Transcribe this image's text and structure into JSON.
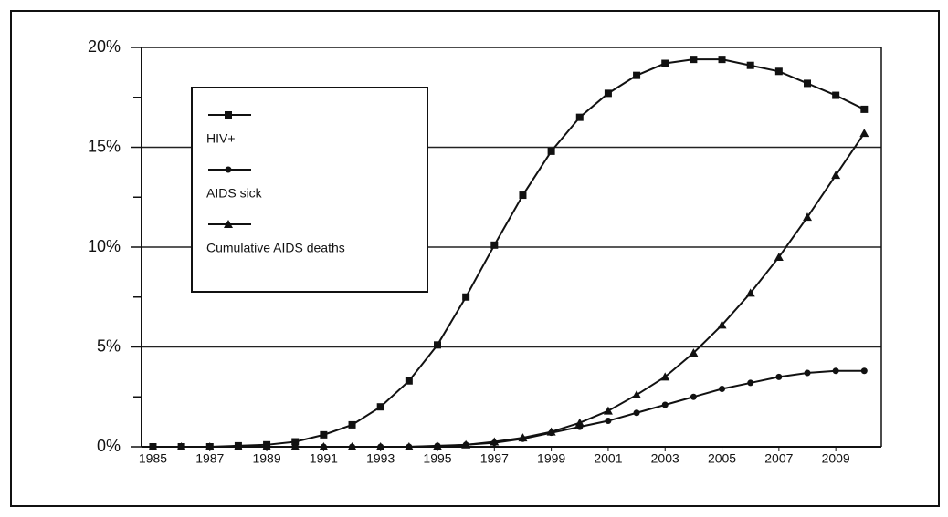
{
  "chart_data": {
    "type": "line",
    "x": [
      1985,
      1986,
      1987,
      1988,
      1989,
      1990,
      1991,
      1992,
      1993,
      1994,
      1995,
      1996,
      1997,
      1998,
      1999,
      2000,
      2001,
      2002,
      2003,
      2004,
      2005,
      2006,
      2007,
      2008,
      2009,
      2010
    ],
    "series": [
      {
        "name": "HIV+",
        "color": "#111111",
        "marker": "square",
        "values": [
          0,
          0,
          0,
          0.05,
          0.1,
          0.25,
          0.6,
          1.1,
          2.0,
          3.3,
          5.1,
          7.5,
          10.1,
          12.6,
          14.8,
          16.5,
          17.7,
          18.6,
          19.2,
          19.4,
          19.4,
          19.1,
          18.8,
          18.2,
          17.6,
          16.9
        ]
      },
      {
        "name": "AIDS sick",
        "color": "#111111",
        "marker": "circle",
        "values": [
          0,
          0,
          0,
          0,
          0,
          0,
          0,
          0,
          0,
          0,
          0.05,
          0.1,
          0.2,
          0.4,
          0.7,
          1.0,
          1.3,
          1.7,
          2.1,
          2.5,
          2.9,
          3.2,
          3.5,
          3.7,
          3.8,
          3.8
        ]
      },
      {
        "name": "Cumulative AIDS deaths",
        "color": "#111111",
        "marker": "triangle",
        "values": [
          0,
          0,
          0,
          0,
          0,
          0,
          0,
          0,
          0,
          0,
          0.02,
          0.1,
          0.25,
          0.45,
          0.75,
          1.2,
          1.8,
          2.6,
          3.5,
          4.7,
          6.1,
          7.7,
          9.5,
          11.5,
          13.6,
          15.7
        ]
      }
    ],
    "xlim": [
      1984.6,
      2010.6
    ],
    "xticks": [
      1985,
      1987,
      1989,
      1991,
      1993,
      1995,
      1997,
      1999,
      2001,
      2003,
      2005,
      2007,
      2009
    ],
    "ylim": [
      0,
      20
    ],
    "yticks": [
      {
        "value": 0,
        "label": "0%"
      },
      {
        "value": 5,
        "label": "5%"
      },
      {
        "value": 10,
        "label": "10%"
      },
      {
        "value": 15,
        "label": "15%"
      },
      {
        "value": 20,
        "label": "20%"
      }
    ],
    "grid": true
  }
}
